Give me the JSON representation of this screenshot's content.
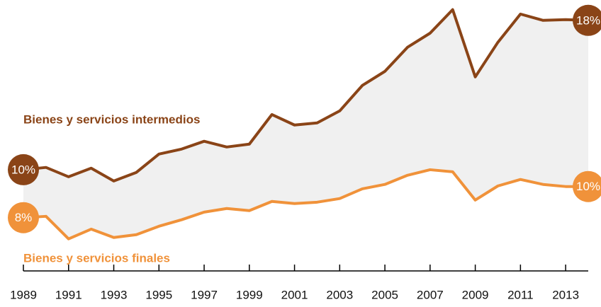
{
  "chart_data": {
    "type": "line",
    "x": [
      1989,
      1990,
      1991,
      1992,
      1993,
      1994,
      1995,
      1996,
      1997,
      1998,
      1999,
      2000,
      2001,
      2002,
      2003,
      2004,
      2005,
      2006,
      2007,
      2008,
      2009,
      2010,
      2011,
      2012,
      2013,
      2014
    ],
    "series": [
      {
        "name": "Bienes y servicios intermedios",
        "color": "#8a4417",
        "values": [
          10.41,
          10.53,
          10.04,
          10.49,
          9.82,
          10.27,
          11.23,
          11.49,
          11.9,
          11.6,
          11.75,
          13.3,
          12.75,
          12.86,
          13.49,
          14.82,
          15.56,
          16.82,
          17.56,
          18.79,
          15.27,
          17.08,
          18.56,
          18.23,
          18.27,
          18.23
        ],
        "value_labels": [
          "10%",
          null,
          null,
          null,
          null,
          null,
          null,
          null,
          null,
          null,
          null,
          null,
          null,
          null,
          null,
          null,
          null,
          null,
          null,
          null,
          null,
          null,
          null,
          null,
          null,
          "18%"
        ]
      },
      {
        "name": "Bienes y servicios finales",
        "color": "#f0923a",
        "values": [
          7.9,
          7.97,
          6.79,
          7.3,
          6.86,
          7.01,
          7.45,
          7.79,
          8.19,
          8.38,
          8.27,
          8.75,
          8.64,
          8.71,
          8.9,
          9.41,
          9.64,
          10.12,
          10.41,
          10.3,
          8.82,
          9.56,
          9.9,
          9.64,
          9.53,
          9.53
        ],
        "value_labels": [
          "8%",
          null,
          null,
          null,
          null,
          null,
          null,
          null,
          null,
          null,
          null,
          null,
          null,
          null,
          null,
          null,
          null,
          null,
          null,
          null,
          null,
          null,
          null,
          null,
          null,
          "10%"
        ]
      }
    ],
    "xlim": [
      1989,
      2014
    ],
    "xticks": [
      1989,
      1991,
      1993,
      1995,
      1997,
      1999,
      2001,
      2003,
      2005,
      2007,
      2009,
      2011,
      2013
    ],
    "ylim": [
      4,
      19
    ],
    "fill_between": "#f0f0f0"
  }
}
